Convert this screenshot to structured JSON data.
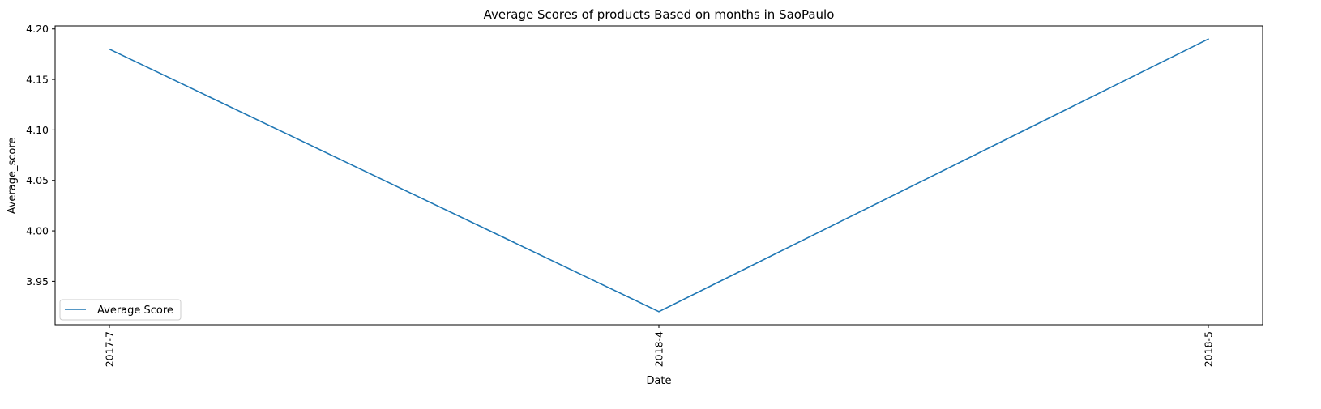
{
  "chart_data": {
    "type": "line",
    "title": "Average Scores of products Based on months in SaoPaulo",
    "xlabel": "Date",
    "ylabel": "Average_score",
    "categories": [
      "2017-7",
      "2018-4",
      "2018-5"
    ],
    "series": [
      {
        "name": "Average Score",
        "values": [
          4.18,
          3.92,
          4.19
        ],
        "color": "#1f77b4"
      }
    ],
    "y_ticks": [
      "3.95",
      "4.00",
      "4.05",
      "4.10",
      "4.15",
      "4.20"
    ],
    "ylim": [
      3.907,
      4.203
    ],
    "grid": false,
    "legend_position": "lower-left"
  }
}
